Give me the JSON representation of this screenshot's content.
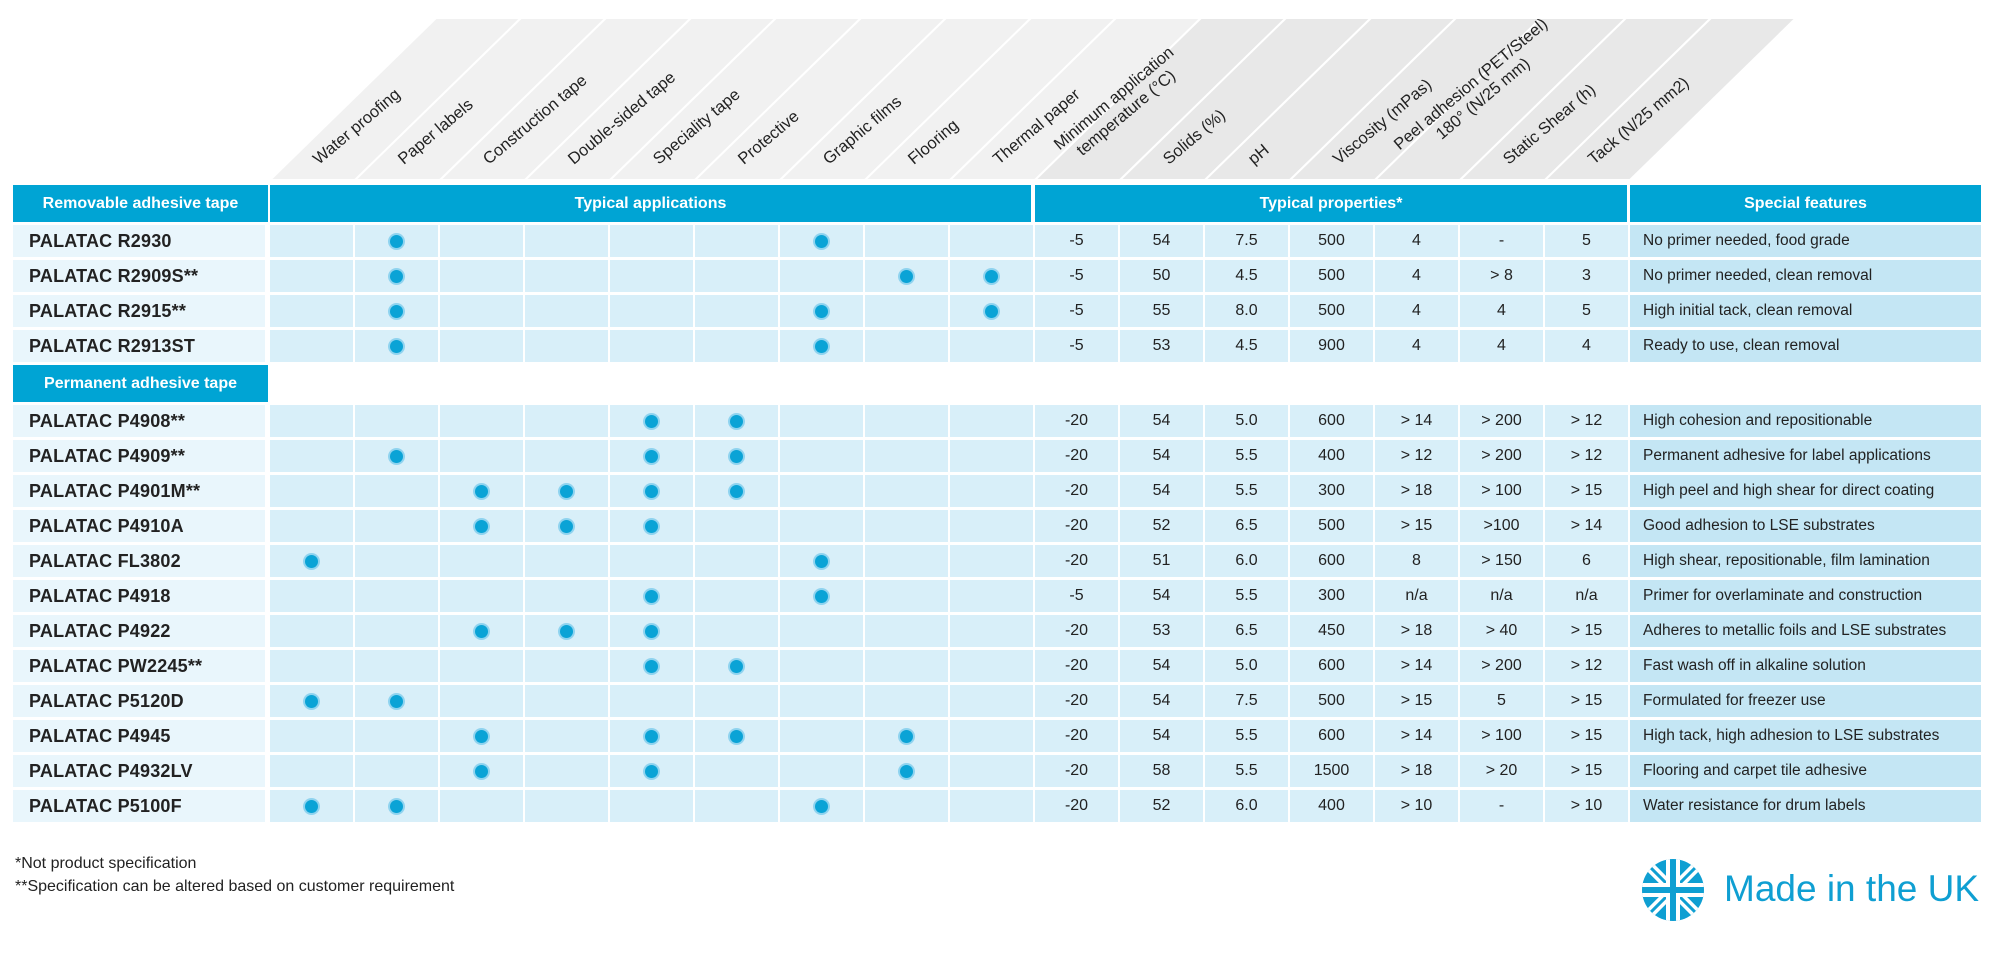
{
  "colors": {
    "accent": "#00a4d4",
    "dot": "#0aa3d6",
    "row_light": "#d8eff9",
    "feature_bg": "#c4e6f4",
    "header_slant": "#ececec"
  },
  "column_headers": {
    "applications": [
      "Water proofing",
      "Paper labels",
      "Construction tape",
      "Double-sided tape",
      "Speciality tape",
      "Protective",
      "Graphic films",
      "Flooring",
      "Thermal paper"
    ],
    "properties": [
      [
        "Minimum application",
        "temperature (°C)"
      ],
      [
        "Solids (%)"
      ],
      [
        "pH"
      ],
      [
        "Viscosity (mPas)"
      ],
      [
        "Peel adhesion (PET/Steel)",
        "180° (N/25 mm)"
      ],
      [
        "Static Shear (h)"
      ],
      [
        "Tack (N/25 mm2)"
      ]
    ]
  },
  "banners": {
    "removable": "Removable adhesive tape",
    "applications": "Typical applications",
    "properties": "Typical properties*",
    "features": "Special features",
    "permanent": "Permanent adhesive tape"
  },
  "removable_rows": [
    {
      "name": "PALATAC R2930",
      "apps": [
        2,
        7
      ],
      "props": [
        "-5",
        "54",
        "7.5",
        "500",
        "4",
        "-",
        "5"
      ],
      "feature": "No primer needed, food grade"
    },
    {
      "name": "PALATAC R2909S**",
      "apps": [
        2,
        8,
        9
      ],
      "props": [
        "-5",
        "50",
        "4.5",
        "500",
        "4",
        "> 8",
        "3"
      ],
      "feature": "No primer needed, clean removal"
    },
    {
      "name": "PALATAC R2915**",
      "apps": [
        2,
        7,
        9
      ],
      "props": [
        "-5",
        "55",
        "8.0",
        "500",
        "4",
        "4",
        "5"
      ],
      "feature": "High initial tack, clean removal"
    },
    {
      "name": "PALATAC R2913ST",
      "apps": [
        2,
        7
      ],
      "props": [
        "-5",
        "53",
        "4.5",
        "900",
        "4",
        "4",
        "4"
      ],
      "feature": "Ready to use, clean removal"
    }
  ],
  "permanent_rows": [
    {
      "name": "PALATAC P4908**",
      "apps": [
        5,
        6
      ],
      "props": [
        "-20",
        "54",
        "5.0",
        "600",
        "> 14",
        "> 200",
        "> 12"
      ],
      "feature": "High cohesion and repositionable"
    },
    {
      "name": "PALATAC P4909**",
      "apps": [
        2,
        5,
        6
      ],
      "props": [
        "-20",
        "54",
        "5.5",
        "400",
        "> 12",
        "> 200",
        "> 12"
      ],
      "feature": "Permanent adhesive for label applications"
    },
    {
      "name": "PALATAC P4901M**",
      "apps": [
        3,
        4,
        5,
        6
      ],
      "props": [
        "-20",
        "54",
        "5.5",
        "300",
        "> 18",
        "> 100",
        "> 15"
      ],
      "feature": "High peel and high shear for direct coating"
    },
    {
      "name": "PALATAC P4910A",
      "apps": [
        3,
        4,
        5
      ],
      "props": [
        "-20",
        "52",
        "6.5",
        "500",
        "> 15",
        ">100",
        "> 14"
      ],
      "feature": "Good adhesion to LSE substrates"
    },
    {
      "name": "PALATAC FL3802",
      "apps": [
        1,
        7
      ],
      "props": [
        "-20",
        "51",
        "6.0",
        "600",
        "8",
        "> 150",
        "6"
      ],
      "feature": "High shear, repositionable, film lamination"
    },
    {
      "name": "PALATAC P4918",
      "apps": [
        5,
        7
      ],
      "props": [
        "-5",
        "54",
        "5.5",
        "300",
        "n/a",
        "n/a",
        "n/a"
      ],
      "feature": "Primer for overlaminate and construction"
    },
    {
      "name": "PALATAC P4922",
      "apps": [
        3,
        4,
        5
      ],
      "props": [
        "-20",
        "53",
        "6.5",
        "450",
        "> 18",
        "> 40",
        "> 15"
      ],
      "feature": "Adheres to metallic foils and LSE substrates"
    },
    {
      "name": "PALATAC PW2245**",
      "apps": [
        5,
        6
      ],
      "props": [
        "-20",
        "54",
        "5.0",
        "600",
        "> 14",
        "> 200",
        "> 12"
      ],
      "feature": "Fast wash off in alkaline solution"
    },
    {
      "name": "PALATAC P5120D",
      "apps": [
        1,
        2
      ],
      "props": [
        "-20",
        "54",
        "7.5",
        "500",
        "> 15",
        "5",
        "> 15"
      ],
      "feature": "Formulated for freezer use"
    },
    {
      "name": "PALATAC P4945",
      "apps": [
        3,
        5,
        6,
        8
      ],
      "props": [
        "-20",
        "54",
        "5.5",
        "600",
        "> 14",
        "> 100",
        "> 15"
      ],
      "feature": "High tack, high adhesion to LSE substrates"
    },
    {
      "name": "PALATAC P4932LV",
      "apps": [
        3,
        5,
        8
      ],
      "props": [
        "-20",
        "58",
        "5.5",
        "1500",
        "> 18",
        "> 20",
        "> 15"
      ],
      "feature": "Flooring and carpet tile adhesive"
    },
    {
      "name": "PALATAC P5100F",
      "apps": [
        1,
        2,
        7
      ],
      "props": [
        "-20",
        "52",
        "6.0",
        "400",
        "> 10",
        "-",
        "> 10"
      ],
      "feature": "Water resistance for drum labels"
    }
  ],
  "notes": {
    "note1": "*Not product specification",
    "note2": "**Specification can be altered based on customer requirement"
  },
  "footer": {
    "logo_icon": "union-jack-icon",
    "made_in": "Made in the UK"
  }
}
